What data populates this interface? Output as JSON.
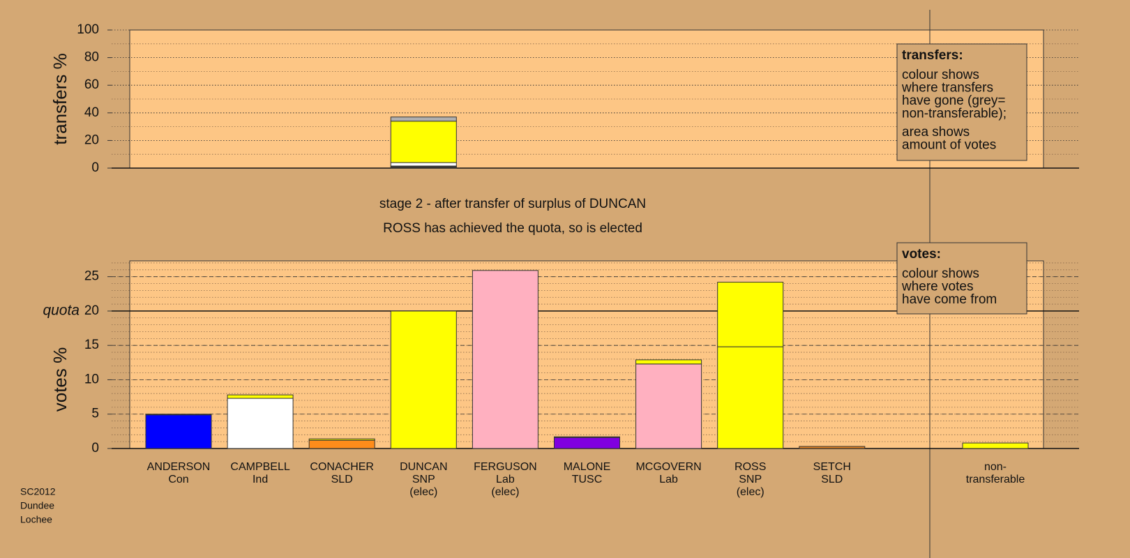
{
  "chart_data": [
    {
      "type": "bar",
      "stacked": true,
      "ylabel": "transfers %",
      "ylim": [
        0,
        100
      ],
      "yticks": [
        0,
        20,
        40,
        60,
        80,
        100
      ],
      "grid": true,
      "grid_style": "dotted",
      "minor_step": 10,
      "series": [
        {
          "color": "#8000e0",
          "values": [
            null,
            null,
            null,
            0.5,
            null,
            null,
            null,
            null,
            null,
            null,
            null
          ]
        },
        {
          "color": "#0000ff",
          "values": [
            null,
            null,
            null,
            0.5,
            null,
            null,
            null,
            null,
            null,
            null,
            null
          ]
        },
        {
          "color": "#ffb0c0",
          "values": [
            null,
            null,
            null,
            0.5,
            null,
            null,
            null,
            null,
            null,
            null,
            null
          ]
        },
        {
          "color": "#ffffff",
          "values": [
            null,
            null,
            null,
            2.5,
            null,
            null,
            null,
            null,
            null,
            null,
            null
          ]
        },
        {
          "color": "#ffff00",
          "values": [
            null,
            null,
            null,
            30,
            null,
            null,
            null,
            null,
            null,
            null,
            null
          ]
        },
        {
          "color": "#b0b0b0",
          "values": [
            null,
            null,
            null,
            3,
            null,
            null,
            null,
            null,
            null,
            null,
            null
          ]
        }
      ],
      "note": {
        "heading": "transfers:",
        "paragraphs": [
          [
            "colour shows",
            "where transfers",
            "have gone (grey=",
            "non-transferable);"
          ],
          [
            "area shows",
            "amount of votes"
          ]
        ]
      }
    },
    {
      "type": "bar",
      "stacked": true,
      "ylabel": "votes %",
      "ylim": [
        0,
        27.3
      ],
      "yticks": [
        0,
        5,
        10,
        15,
        20,
        25
      ],
      "grid": true,
      "grid_style": "dashed",
      "minor_step": 1,
      "quota": 20,
      "quota_label": "quota",
      "categories": [
        [
          "ANDERSON",
          "Con"
        ],
        [
          "CAMPBELL",
          "Ind"
        ],
        [
          "CONACHER",
          "SLD"
        ],
        [
          "DUNCAN",
          "SNP",
          "(elec)"
        ],
        [
          "FERGUSON",
          "Lab",
          "(elec)"
        ],
        [
          "MALONE",
          "TUSC"
        ],
        [
          "MCGOVERN",
          "Lab"
        ],
        [
          "ROSS",
          "SNP",
          "(elec)"
        ],
        [
          "SETCH",
          "SLD"
        ],
        null,
        [
          "non-",
          "transferable"
        ]
      ],
      "series": [
        {
          "colors": [
            "#0000ff",
            "#ffffff",
            "#ff8c1a",
            "#ffff00",
            "#ffb0c0",
            "#8000e0",
            "#ffb0c0",
            "#ffff00",
            "#e08020",
            null,
            "#ffff00"
          ],
          "values": [
            4.9,
            7.3,
            1.2,
            20,
            25.9,
            1.6,
            12.3,
            14.8,
            0.3,
            null,
            0.8
          ]
        },
        {
          "color": "#ffff00",
          "values": [
            0.1,
            0.5,
            0.2,
            null,
            null,
            0.1,
            0.6,
            9.4,
            null,
            null,
            null
          ]
        }
      ],
      "note": {
        "heading": "votes:",
        "paragraphs": [
          [
            "colour shows",
            "where votes",
            "have come from"
          ]
        ]
      }
    }
  ],
  "stage_text": [
    "stage 2 - after transfer of surplus of DUNCAN",
    "ROSS has achieved the quota, so is elected"
  ],
  "footnote": [
    "SC2012",
    "Dundee",
    "Lochee"
  ]
}
